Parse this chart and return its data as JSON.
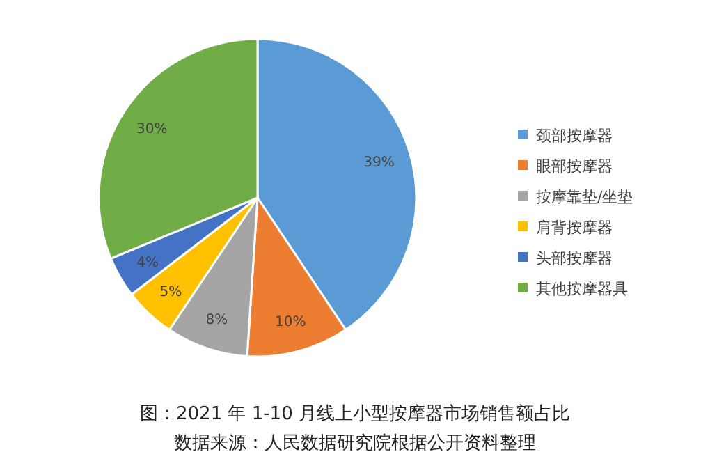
{
  "chart_data": {
    "type": "pie",
    "title": "图：2021 年 1-10 月线上小型按摩器市场销售额占比",
    "annotations": [
      "数据来源：人民数据研究院根据公开资料整理"
    ],
    "categories": [
      "颈部按摩器",
      "眼部按摩器",
      "按摩靠垫/坐垫",
      "肩背按摩器",
      "头部按摩器",
      "其他按摩器具"
    ],
    "values": [
      39,
      10,
      8,
      5,
      4,
      30
    ],
    "value_labels": [
      "39%",
      "10%",
      "8%",
      "5%",
      "4%",
      "30%"
    ],
    "colors": [
      "#5b9bd5",
      "#ed7d31",
      "#a5a5a5",
      "#ffc000",
      "#4472c4",
      "#70ad47"
    ],
    "legend": "right"
  }
}
